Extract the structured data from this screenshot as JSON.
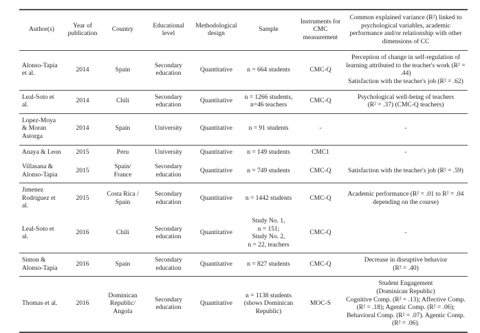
{
  "colors": {
    "text": "#1f1f1f",
    "rule": "#4d4d4d",
    "background": "#ffffff"
  },
  "table": {
    "columns": [
      "Author(s)",
      "Year of publication",
      "Country",
      "Educational level",
      "Methodological design",
      "Sample",
      "Instruments for CMC measurement",
      "Common explained variance (R²) linked to psychological variables, academic performance and/or relationship with other dimensions of CC"
    ],
    "rows": [
      {
        "author": "Alonso-Tapia et al.",
        "year": "2014",
        "country": "Spain",
        "level": "Secondary education",
        "design": "Quantitative",
        "sample": "n = 664 students",
        "instrument": "CMC-Q",
        "result": "Perception of change in self-regulation of learning attributed to the teacher's work (R² = .44)\nSatisfaction with the teacher's job (R² = .62)"
      },
      {
        "author": "Leal-Soto et al.",
        "year": "2014",
        "country": "Chili",
        "level": "Secondary education",
        "design": "Quantitative",
        "sample": "n = 1266 students, n=46 teachers",
        "instrument": "CMC-Q",
        "result": "Psychological well-being of teachers\n(R² = .37) (CMC-Q teachers)"
      },
      {
        "author": "Lopez-Moya & Moran Astorga",
        "year": "2014",
        "country": "Spain",
        "level": "University",
        "design": "Quantitative",
        "sample": "n = 91 students",
        "instrument": "-",
        "result": "-"
      },
      {
        "author": "Anaya & Leon",
        "year": "2015",
        "country": "Peru",
        "level": "University",
        "design": "Quantitative",
        "sample": "n = 149 students",
        "instrument": "CMC1",
        "result": "-"
      },
      {
        "author": "Villasana & Alonso-Tapia",
        "year": "2015",
        "country": "Spain/\nFrance",
        "level": "Secondary education",
        "design": "Quantitative",
        "sample": "n = 749 students",
        "instrument": "CMC-Q",
        "result": "Satisfaction with the teacher's job (R² = .59)"
      },
      {
        "author": "Jimenez Rodriguez et al.",
        "year": "2015",
        "country": "Costa Rica / Spain",
        "level": "Secondary education",
        "design": "Quantitative",
        "sample": "n = 1442 students",
        "instrument": "CMC-Q",
        "result": "Academic performance (R² = .01 to R² = .04 depending on the course)"
      },
      {
        "author": "Leal-Soto et al.",
        "year": "2016",
        "country": "Chili",
        "level": "Secondary education",
        "design": "Quantitative",
        "sample": "Study No. 1,\nn = 151;\nStudy No. 2,\nn = 22, teachers",
        "instrument": "CMC-Q",
        "result": "-"
      },
      {
        "author": "Simon & Alonso-Tapia",
        "year": "2016",
        "country": "Spain",
        "level": "Secondary education",
        "design": "Quantitative",
        "sample": "n = 827 students",
        "instrument": "CMC-Q",
        "result": "Decrease in disruptive behavior\n(R² = .40)"
      },
      {
        "author": "Thomas et al.",
        "year": "2016",
        "country": "Dominican\nRepublic/\nAngola",
        "level": "Secondary education",
        "design": "Quantitative",
        "sample": "n = 1138 students (shows Dominican Republic)",
        "instrument": "MOC-S",
        "result": "Student Engagement\n(Dominican Republic)\nCognitive Comp. (R² = .13); Affective Comp. (R² = .18); Agentic Comp. (R² = .06); Behavioral Comp. (R² = .07). Agentic Comp. (R² = .06)."
      }
    ]
  }
}
